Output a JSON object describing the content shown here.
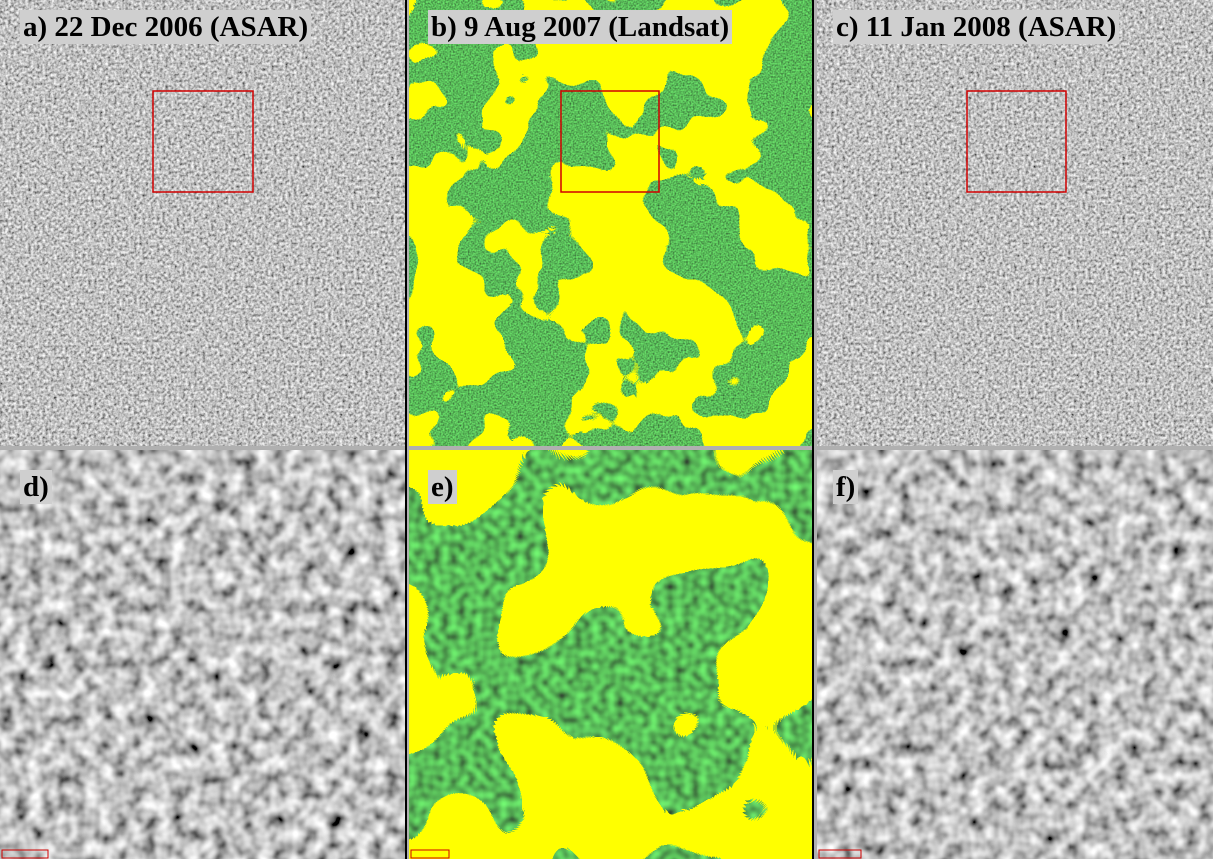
{
  "panels": [
    {
      "label": "a) 22 Dec 2006 (ASAR)"
    },
    {
      "label": "b) 9 Aug 2007 (Landsat)"
    },
    {
      "label": "c) 11 Jan 2008 (ASAR)"
    },
    {
      "label": "d)"
    },
    {
      "label": "e)"
    },
    {
      "label": "f)"
    }
  ]
}
